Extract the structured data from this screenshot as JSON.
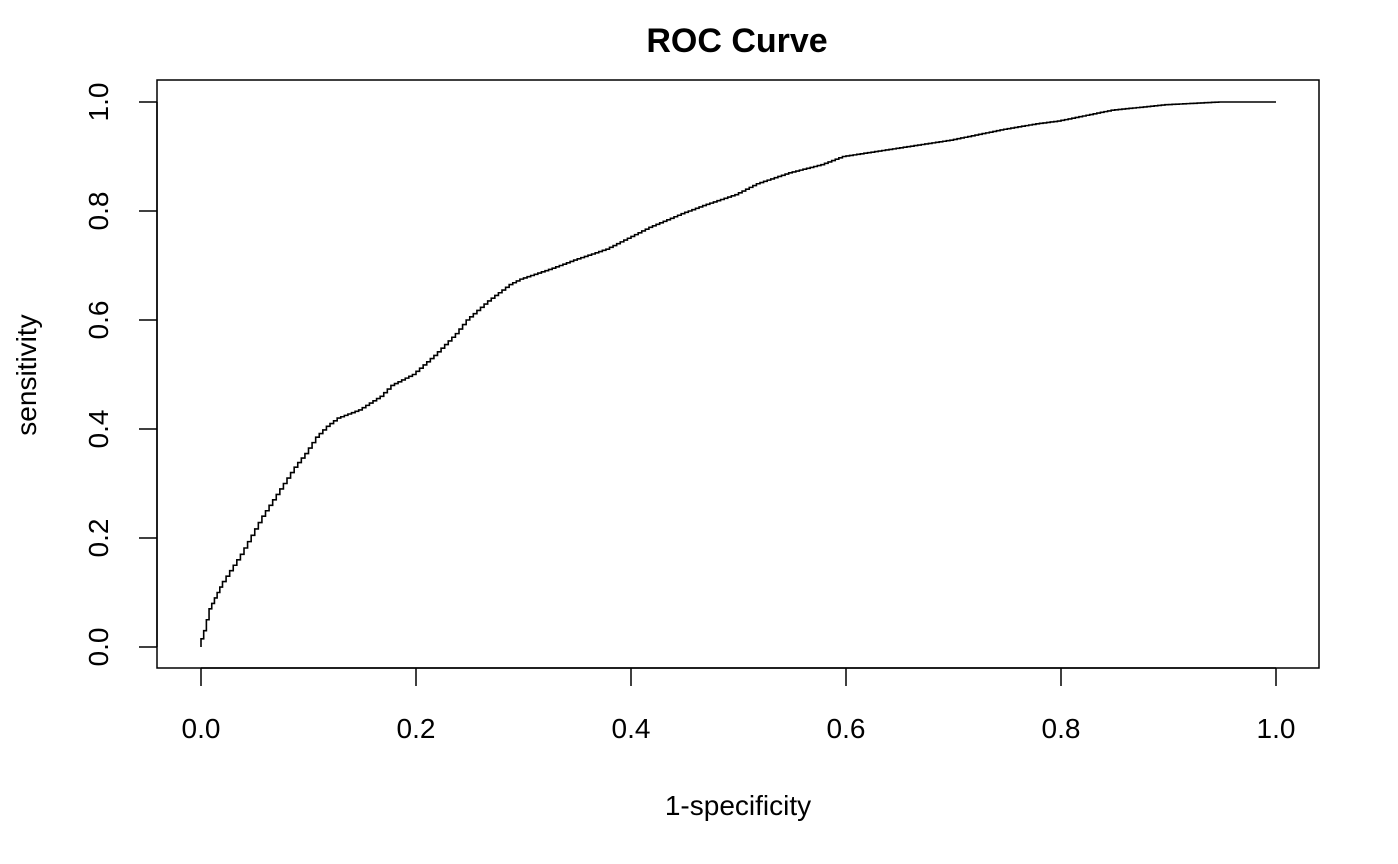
{
  "chart_data": {
    "type": "line",
    "title": "ROC Curve",
    "xlabel": "1-specificity",
    "ylabel": "sensitivity",
    "xlim": [
      0.0,
      1.0
    ],
    "ylim": [
      0.0,
      1.0
    ],
    "grid": false,
    "x_tick_labels": [
      "0.0",
      "0.2",
      "0.4",
      "0.6",
      "0.8",
      "1.0"
    ],
    "y_tick_labels": [
      "0.0",
      "0.2",
      "0.4",
      "0.6",
      "0.8",
      "1.0"
    ],
    "x_ticks": [
      0.0,
      0.2,
      0.4,
      0.6,
      0.8,
      1.0
    ],
    "y_ticks": [
      0.0,
      0.2,
      0.4,
      0.6,
      0.8,
      1.0
    ],
    "series": [
      {
        "name": "ROC",
        "color": "#000000",
        "x": [
          0.0,
          0.005,
          0.01,
          0.015,
          0.02,
          0.03,
          0.04,
          0.05,
          0.06,
          0.07,
          0.08,
          0.09,
          0.1,
          0.11,
          0.12,
          0.13,
          0.15,
          0.17,
          0.18,
          0.2,
          0.22,
          0.24,
          0.25,
          0.27,
          0.29,
          0.3,
          0.33,
          0.35,
          0.38,
          0.4,
          0.42,
          0.45,
          0.47,
          0.5,
          0.52,
          0.55,
          0.58,
          0.6,
          0.65,
          0.7,
          0.75,
          0.78,
          0.8,
          0.85,
          0.9,
          0.95,
          1.0
        ],
        "y": [
          0.0,
          0.03,
          0.07,
          0.09,
          0.11,
          0.14,
          0.17,
          0.205,
          0.24,
          0.27,
          0.3,
          0.33,
          0.355,
          0.385,
          0.405,
          0.42,
          0.435,
          0.46,
          0.48,
          0.5,
          0.535,
          0.575,
          0.6,
          0.635,
          0.665,
          0.675,
          0.695,
          0.71,
          0.73,
          0.75,
          0.77,
          0.795,
          0.81,
          0.83,
          0.85,
          0.87,
          0.885,
          0.9,
          0.915,
          0.93,
          0.95,
          0.96,
          0.965,
          0.985,
          0.995,
          1.0,
          1.0
        ]
      }
    ]
  }
}
